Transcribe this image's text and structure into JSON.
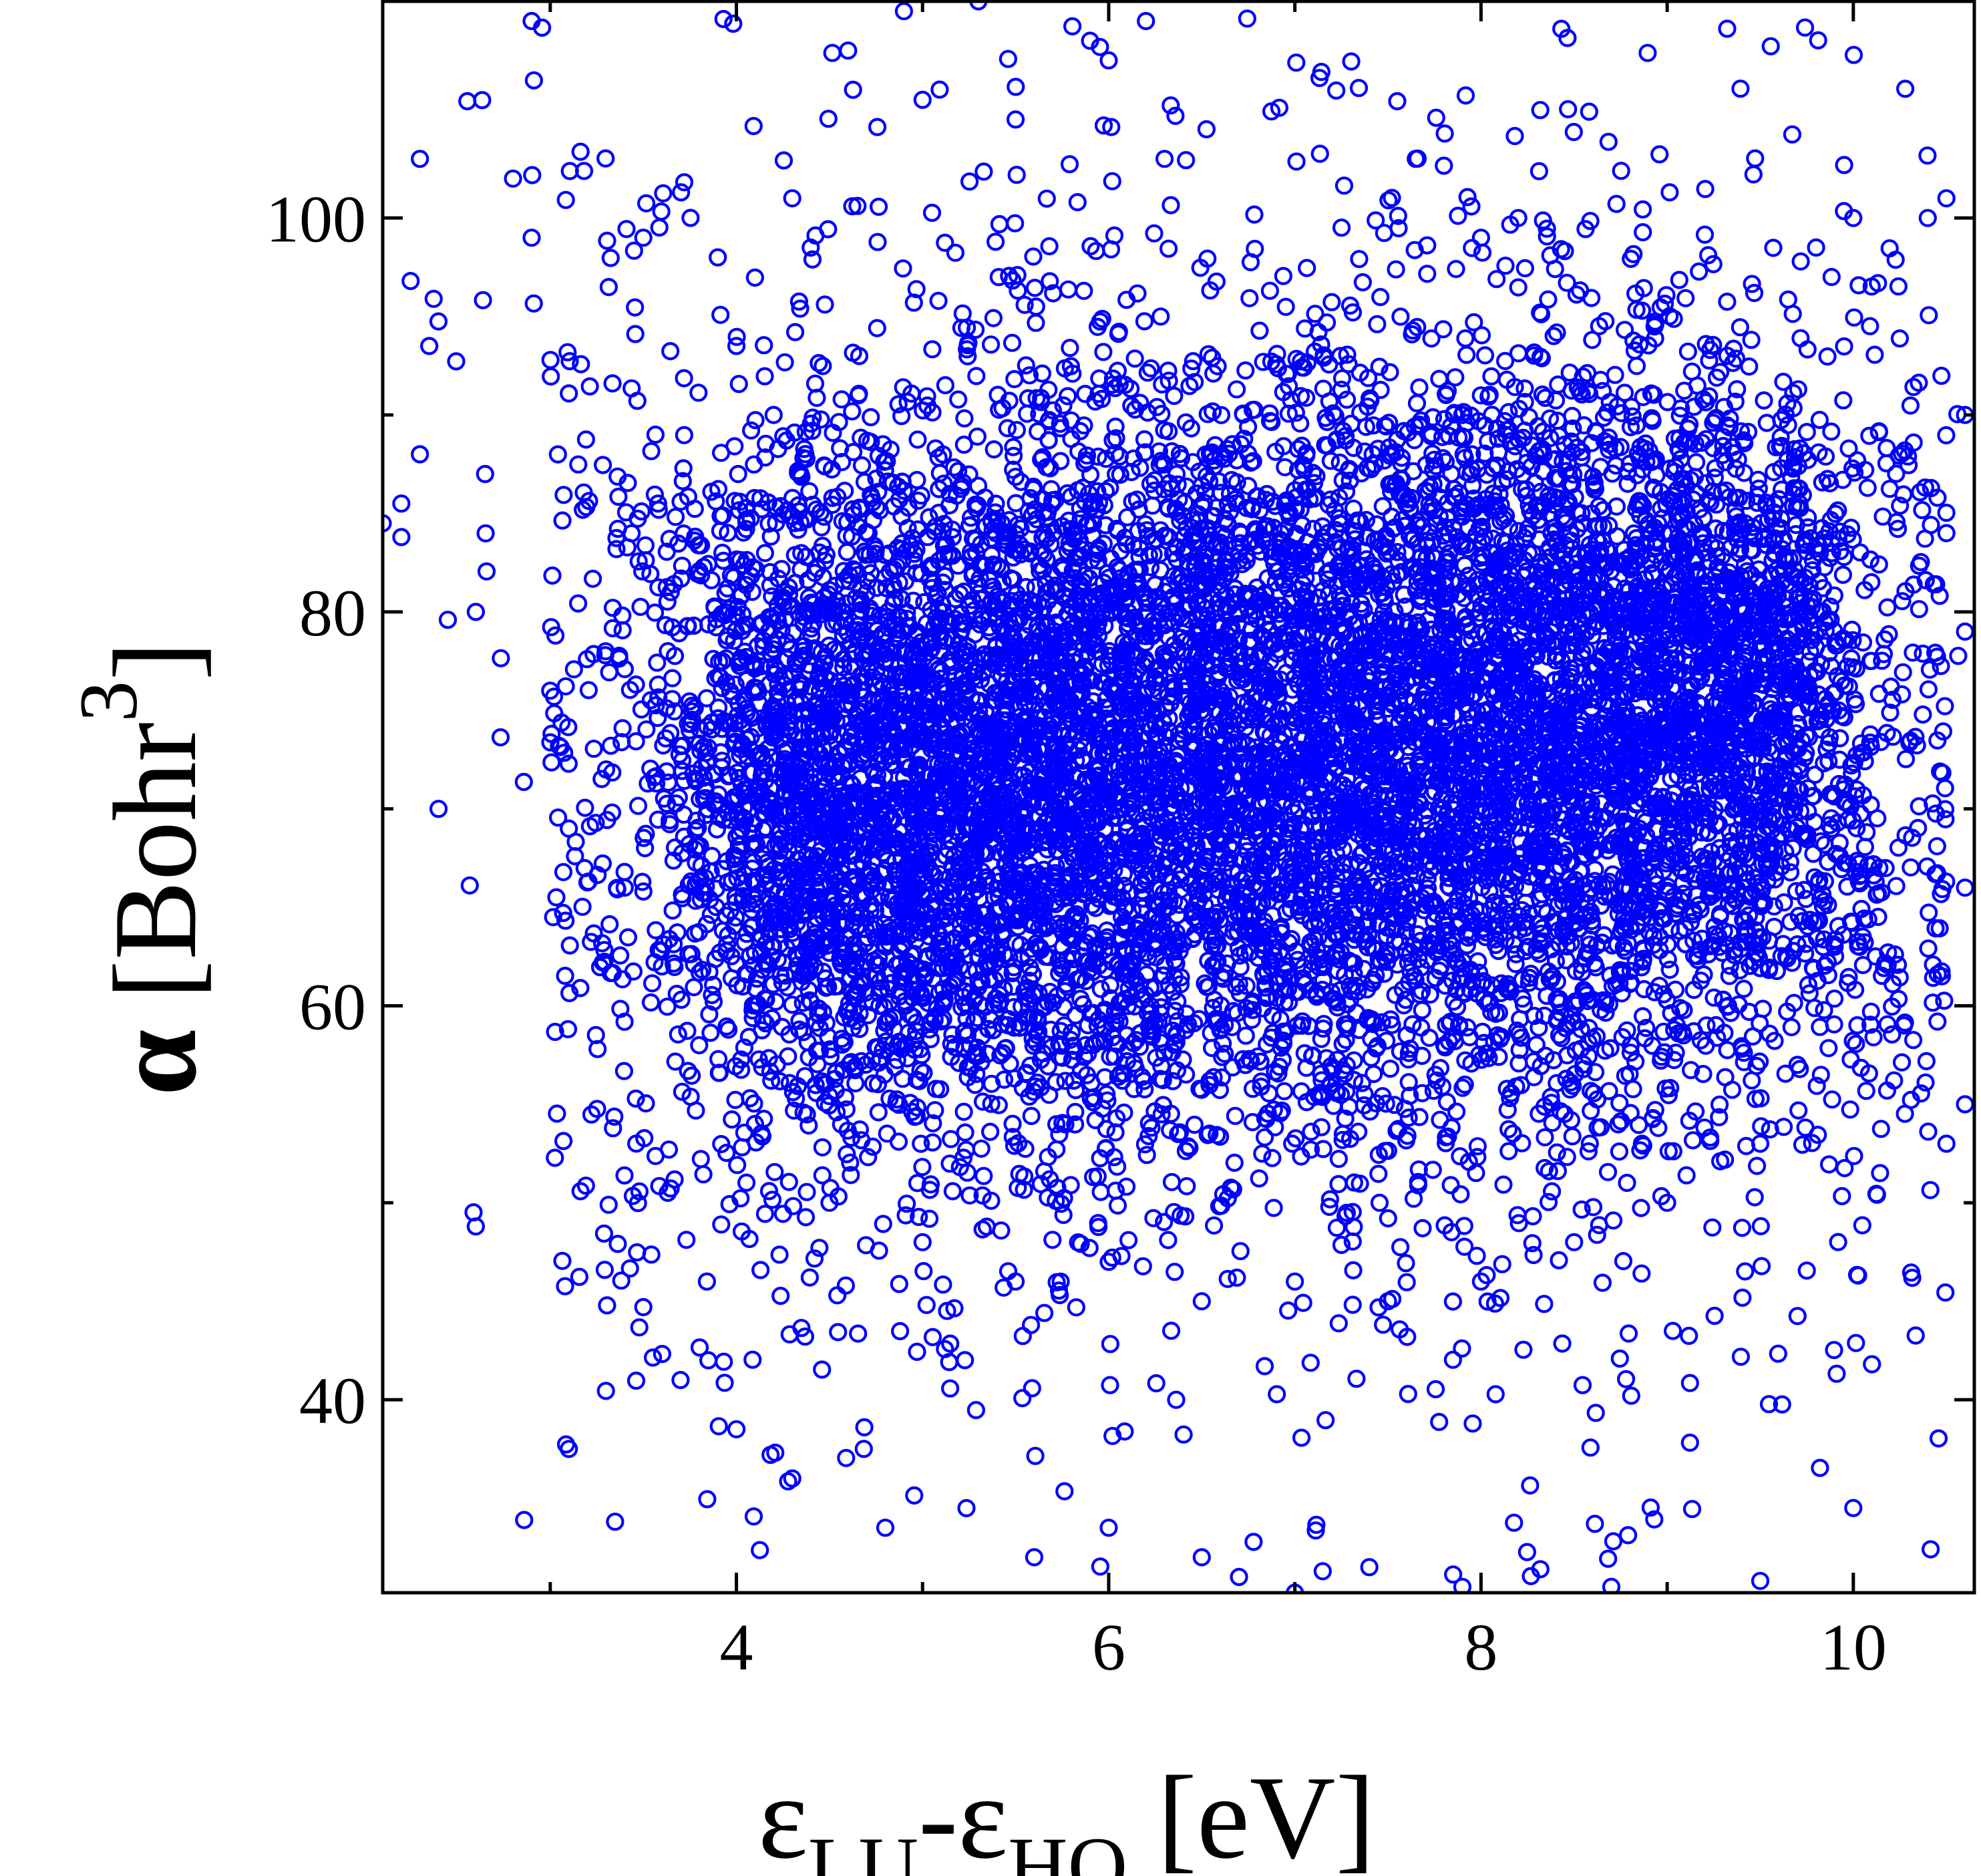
{
  "chart_data": {
    "type": "scatter",
    "title": "",
    "xlabel": {
      "main": "ε",
      "sub1": "LU",
      "mid": "-ε",
      "sub2": "HO",
      "unit": " [eV]"
    },
    "ylabel": {
      "symbol": "α",
      "unit_open": " [Bohr",
      "exp": "3",
      "unit_close": "]"
    },
    "xlim": [
      2.1,
      10.65
    ],
    "ylim": [
      30.2,
      111
    ],
    "xticks": [
      4,
      6,
      8,
      10
    ],
    "yticks": [
      40,
      60,
      80,
      100
    ],
    "xtick_labels": [
      "4",
      "6",
      "8",
      "10"
    ],
    "ytick_labels": [
      "40",
      "60",
      "80",
      "100"
    ],
    "grid": false,
    "legend": "none",
    "marker": "open-circle",
    "marker_color": "#0000ff",
    "series": [
      {
        "description_of_density": "dense cloud of several thousand points, roughly x 3.5–10, y 45–97",
        "sample_points": [
          [
            2.1,
            84.5
          ],
          [
            2.2,
            85.5
          ],
          [
            2.2,
            83.8
          ],
          [
            2.25,
            96.8
          ],
          [
            2.3,
            103
          ],
          [
            2.35,
            93.5
          ],
          [
            2.3,
            88
          ],
          [
            2.9,
            110
          ],
          [
            2.8,
            102
          ],
          [
            2.9,
            99
          ],
          [
            2.65,
            87
          ],
          [
            2.6,
            80
          ],
          [
            2.45,
            79.6
          ],
          [
            2.4,
            70
          ],
          [
            2.6,
            48.8
          ],
          [
            3.1,
            37.5
          ],
          [
            3.5,
            44.7
          ],
          [
            3.7,
            41
          ],
          [
            3.5,
            99
          ],
          [
            3.9,
            98
          ],
          [
            4.0,
            93.5
          ],
          [
            4.2,
            90
          ],
          [
            4.3,
            101
          ],
          [
            4.6,
            108.5
          ],
          [
            4.9,
            110.5
          ],
          [
            5.3,
            111
          ],
          [
            5.9,
            109
          ],
          [
            6.0,
            108
          ],
          [
            6.2,
            110
          ],
          [
            6.3,
            103
          ],
          [
            5.5,
            105
          ],
          [
            5.0,
            106
          ],
          [
            4.0,
            38.5
          ],
          [
            4.3,
            36
          ],
          [
            4.8,
            33.5
          ],
          [
            5.6,
            32
          ],
          [
            6.0,
            33.5
          ],
          [
            6.5,
            32
          ],
          [
            6.7,
            31
          ],
          [
            7.0,
            30.2
          ],
          [
            7.4,
            31.5
          ],
          [
            7.9,
            30.5
          ],
          [
            8.7,
            30.5
          ],
          [
            9.5,
            30.8
          ],
          [
            10.0,
            34.5
          ],
          [
            10.1,
            41.8
          ],
          [
            10.5,
            53
          ],
          [
            10.6,
            55
          ],
          [
            10.6,
            66
          ],
          [
            10.6,
            79
          ],
          [
            10.5,
            101
          ],
          [
            10.4,
            100
          ],
          [
            10.0,
            100
          ],
          [
            9.8,
            98.5
          ],
          [
            8.2,
            100
          ],
          [
            8.0,
            99
          ],
          [
            10.5,
            84
          ],
          [
            10.6,
            90
          ],
          [
            3.0,
            76
          ],
          [
            3.3,
            72
          ],
          [
            3.1,
            69
          ],
          [
            3.4,
            66
          ],
          [
            3.6,
            62
          ],
          [
            3.8,
            58
          ],
          [
            4.1,
            54
          ],
          [
            4.5,
            50
          ],
          [
            5.0,
            48
          ],
          [
            5.5,
            46
          ],
          [
            6.0,
            47
          ],
          [
            6.5,
            45
          ],
          [
            7.0,
            46
          ],
          [
            7.5,
            45
          ],
          [
            8.0,
            46
          ],
          [
            8.5,
            48
          ],
          [
            9.0,
            50
          ],
          [
            9.5,
            53
          ],
          [
            9.7,
            57
          ],
          [
            9.9,
            63
          ]
        ]
      }
    ]
  }
}
